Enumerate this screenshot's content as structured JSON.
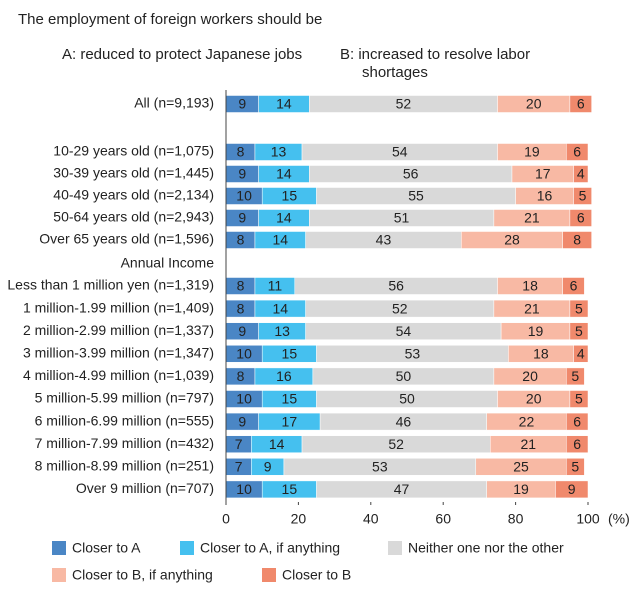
{
  "chart_data": {
    "type": "stacked-bar",
    "title": "The employment of foreign workers should be",
    "subtitle_a": "A: reduced to protect Japanese jobs",
    "subtitle_b": "B: increased to resolve labor shortages",
    "section_label": "Annual Income",
    "x_unit": "(%)",
    "categories": [
      "All (n=9,193)",
      "10-29 years old (n=1,075)",
      "30-39 years old (n=1,445)",
      "40-49 years old (n=2,134)",
      "50-64 years old (n=2,943)",
      "Over 65 years old (n=1,596)",
      "Less than 1 million yen (n=1,319)",
      "1 million-1.99 million (n=1,409)",
      "2 million-2.99 million (n=1,337)",
      "3 million-3.99 million (n=1,347)",
      "4 million-4.99 million (n=1,039)",
      "5 million-5.99 million (n=797)",
      "6 million-6.99 million (n=555)",
      "7 million-7.99 million (n=432)",
      "8 million-8.99 million (n=251)",
      "Over 9 million (n=707)"
    ],
    "series": [
      {
        "name": "Closer to A",
        "color": "#4a86c5",
        "values": [
          9,
          8,
          9,
          10,
          9,
          8,
          8,
          8,
          9,
          10,
          8,
          10,
          9,
          7,
          7,
          10
        ]
      },
      {
        "name": "Closer to A, if anything",
        "color": "#45c0ef",
        "values": [
          14,
          13,
          14,
          15,
          14,
          14,
          11,
          14,
          13,
          15,
          16,
          15,
          17,
          14,
          9,
          15
        ]
      },
      {
        "name": "Neither one nor the other",
        "color": "#d9d9d9",
        "values": [
          52,
          54,
          56,
          55,
          51,
          43,
          56,
          52,
          54,
          53,
          50,
          50,
          46,
          52,
          53,
          47
        ]
      },
      {
        "name": "Closer to B, if anything",
        "color": "#f8b9a4",
        "values": [
          20,
          19,
          17,
          16,
          21,
          28,
          18,
          21,
          19,
          18,
          20,
          20,
          22,
          21,
          25,
          19
        ]
      },
      {
        "name": "Closer to B",
        "color": "#f0896c",
        "values": [
          6,
          6,
          4,
          5,
          6,
          8,
          6,
          5,
          5,
          4,
          5,
          5,
          6,
          6,
          5,
          9
        ]
      }
    ],
    "xlim": [
      0,
      100
    ],
    "xticks": [
      0,
      20,
      40,
      60,
      80,
      100
    ]
  }
}
